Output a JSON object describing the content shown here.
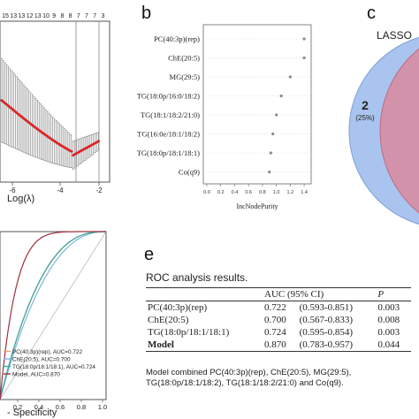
{
  "panels": {
    "b": "b",
    "c": "c",
    "e": "e"
  },
  "panel_a": {
    "top_ticks": [
      "15",
      "13",
      "13",
      "12",
      "13",
      "10",
      "9",
      "8",
      "8",
      "7",
      "7",
      "7",
      "3"
    ],
    "x_ticks": [
      "-6",
      "-4",
      "-2"
    ],
    "xlabel": "Log(λ)"
  },
  "panel_b": {
    "chart_data": {
      "type": "scatter",
      "categories": [
        "PC(40:3p)(rep)",
        "ChE(20:5)",
        "MG(29:5)",
        "TG(18:0p/16:0/18:2)",
        "TG(18:1/18:2/21:0)",
        "TG(16:0e/18:1/18:2)",
        "TG(18:0p/18:1/18:1)",
        "Co(q9)"
      ],
      "values": [
        1.4,
        1.4,
        1.2,
        1.07,
        1.0,
        0.95,
        0.92,
        0.9
      ],
      "xlabel": "IncNodePurity",
      "x_ticks": [
        "0.0",
        "0.2",
        "0.4",
        "0.6",
        "0.8",
        "1.0",
        "1.2",
        "1.4"
      ],
      "xlim": [
        0,
        1.45
      ]
    }
  },
  "panel_c": {
    "title": "LASSO",
    "count": "2",
    "percent": "(25%)"
  },
  "panel_d": {
    "chart_data": {
      "type": "line",
      "xlabel": "- Specificity",
      "x_ticks": [
        "0.2",
        "0.4",
        "0.6",
        "0.8",
        "1.0"
      ],
      "series": [
        {
          "name": "PC(40:3p)(rep), AUC=0.722",
          "color": "#e8a07a",
          "auc": 0.722
        },
        {
          "name": "ChE(20:5), AUC=0.700",
          "color": "#7ab8e0",
          "auc": 0.7
        },
        {
          "name": "TG(18:0p/18:1/18:1), AUC=0.724",
          "color": "#3aa8a0",
          "auc": 0.724
        },
        {
          "name": "Model, AUC=0.870",
          "color": "#a03040",
          "auc": 0.87
        }
      ]
    }
  },
  "panel_e": {
    "title": "ROC  analysis results.",
    "headers": [
      "",
      "AUC (95% CI)",
      "P"
    ],
    "rows": [
      {
        "name": "PC(40:3p)(rep)",
        "auc": "0.722",
        "ci": "(0.593-0.851)",
        "p": "0.003"
      },
      {
        "name": "ChE(20:5)",
        "auc": "0.700",
        "ci": "(0.567-0.833)",
        "p": "0.008"
      },
      {
        "name": "TG(18:0p/18:1/18:1)",
        "auc": "0.724",
        "ci": "(0.595-0.854)",
        "p": "0.003"
      },
      {
        "name": "Model",
        "auc": "0.870",
        "ci": "(0.783-0.957)",
        "p": "0.044"
      }
    ],
    "note": "Model combined PC(40:3p)(rep), ChE(20:5), MG(29:5), TG(18:0p/18:1/18:2), TG(18:1/18:2/21:0) and Co(q9)."
  }
}
